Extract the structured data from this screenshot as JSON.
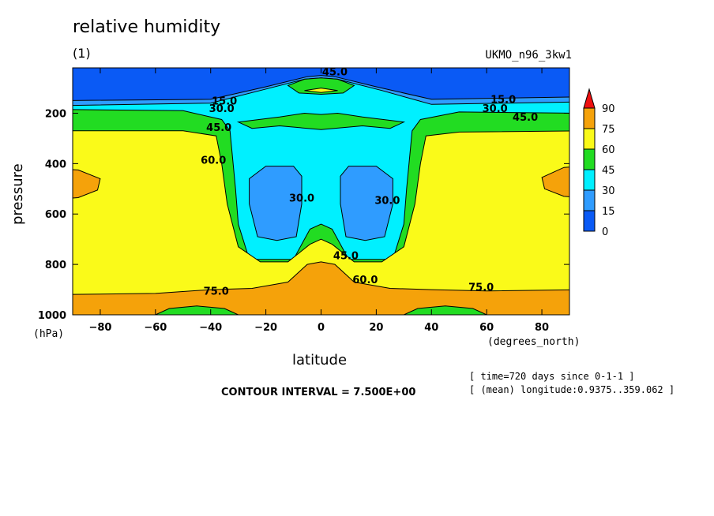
{
  "header": {
    "title": "relative humidity",
    "subtitle": "(1)",
    "model": "UKMO_n96_3kw1"
  },
  "footer": {
    "contour_interval": "CONTOUR INTERVAL = 7.500E+00",
    "time_note": "[ time=720 days since 0-1-1 ]",
    "longitude_note": "[ (mean) longitude:0.9375..359.062 ]"
  },
  "colors": {
    "c0": "#0a5af5",
    "c15": "#2f9cff",
    "c30": "#00f0ff",
    "c45": "#22dc22",
    "c60": "#fafa19",
    "c75": "#f5a20a",
    "c90": "#ee1010"
  },
  "chart_data": {
    "type": "contour",
    "title": "relative humidity",
    "subtitle": "(1)",
    "xlabel": "latitude",
    "xunit": "(degrees_north)",
    "ylabel": "pressure",
    "yunit": "(hPa)",
    "xlim": [
      -90,
      90
    ],
    "ylim": [
      1000,
      20
    ],
    "x_ticks": [
      -80,
      -60,
      -40,
      -20,
      0,
      20,
      40,
      60,
      80
    ],
    "y_ticks": [
      200,
      400,
      600,
      800,
      1000
    ],
    "colorbar": {
      "levels": [
        0,
        15,
        30,
        45,
        60,
        75,
        90
      ],
      "labels": [
        "90",
        "75",
        "60",
        "45",
        "30",
        "15",
        "0"
      ]
    },
    "contour_labels": [
      {
        "text": "15.0",
        "lat": -35,
        "p": 165
      },
      {
        "text": "30.0",
        "lat": -36,
        "p": 195
      },
      {
        "text": "45.0",
        "lat": -37,
        "p": 270
      },
      {
        "text": "60.0",
        "lat": -39,
        "p": 400
      },
      {
        "text": "30.0",
        "lat": -7,
        "p": 550
      },
      {
        "text": "45.0",
        "lat": 9,
        "p": 780
      },
      {
        "text": "60.0",
        "lat": 16,
        "p": 875
      },
      {
        "text": "75.0",
        "lat": -38,
        "p": 920
      },
      {
        "text": "30.0",
        "lat": 24,
        "p": 560
      },
      {
        "text": "15.0",
        "lat": 66,
        "p": 160
      },
      {
        "text": "30.0",
        "lat": 63,
        "p": 195
      },
      {
        "text": "45.0",
        "lat": 74,
        "p": 230
      },
      {
        "text": "75.0",
        "lat": 58,
        "p": 905
      },
      {
        "text": "45.0",
        "lat": 5,
        "p": 50
      }
    ]
  }
}
